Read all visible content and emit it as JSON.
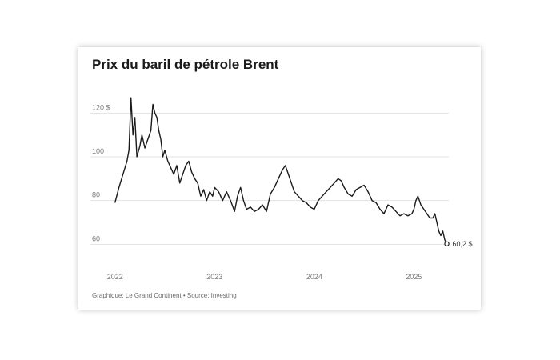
{
  "chart_data": {
    "type": "line",
    "title": "Prix du baril de pétrole Brent",
    "xlabel": "",
    "ylabel": "",
    "y_ticks": [
      "120 $",
      "100",
      "80",
      "60"
    ],
    "y_tick_values": [
      120,
      100,
      80,
      60
    ],
    "x_ticks": [
      "2022",
      "2023",
      "2024",
      "2025"
    ],
    "x_tick_values": [
      2022,
      2023,
      2024,
      2025
    ],
    "xlim": [
      2021.97,
      2025.35
    ],
    "ylim": [
      55,
      130
    ],
    "grid": true,
    "end_label": "60,2 $",
    "line_color": "#1a1a1a",
    "grid_color": "#e3e3e3",
    "series": [
      {
        "x": [
          2022.0,
          2022.04,
          2022.08,
          2022.12,
          2022.14,
          2022.16,
          2022.18,
          2022.2,
          2022.22,
          2022.25,
          2022.27,
          2022.3,
          2022.33,
          2022.36,
          2022.38,
          2022.4,
          2022.42,
          2022.44,
          2022.46,
          2022.48,
          2022.5,
          2022.53,
          2022.56,
          2022.59,
          2022.62,
          2022.65,
          2022.68,
          2022.71,
          2022.74,
          2022.77,
          2022.8,
          2022.83,
          2022.86,
          2022.89,
          2022.92,
          2022.95,
          2022.98,
          2023.0,
          2023.04,
          2023.08,
          2023.12,
          2023.16,
          2023.2,
          2023.23,
          2023.26,
          2023.29,
          2023.32,
          2023.36,
          2023.4,
          2023.44,
          2023.48,
          2023.52,
          2023.56,
          2023.6,
          2023.64,
          2023.68,
          2023.71,
          2023.74,
          2023.77,
          2023.8,
          2023.84,
          2023.88,
          2023.92,
          2023.96,
          2024.0,
          2024.04,
          2024.08,
          2024.12,
          2024.16,
          2024.2,
          2024.24,
          2024.27,
          2024.3,
          2024.34,
          2024.38,
          2024.42,
          2024.46,
          2024.5,
          2024.54,
          2024.58,
          2024.62,
          2024.66,
          2024.7,
          2024.74,
          2024.78,
          2024.82,
          2024.86,
          2024.9,
          2024.94,
          2024.98,
          2025.0,
          2025.02,
          2025.04,
          2025.07,
          2025.1,
          2025.13,
          2025.16,
          2025.19,
          2025.21,
          2025.23,
          2025.25,
          2025.27,
          2025.29,
          2025.31,
          2025.33
        ],
        "values": [
          79,
          86,
          92,
          98,
          103,
          127,
          110,
          118,
          100,
          105,
          110,
          104,
          108,
          112,
          124,
          120,
          118,
          112,
          108,
          100,
          103,
          98,
          95,
          92,
          96,
          88,
          92,
          96,
          98,
          93,
          90,
          88,
          82,
          85,
          80,
          84,
          82,
          86,
          84,
          80,
          84,
          80,
          75,
          82,
          86,
          80,
          76,
          77,
          75,
          76,
          78,
          75,
          83,
          86,
          90,
          94,
          96,
          92,
          88,
          84,
          82,
          80,
          79,
          77,
          76,
          80,
          82,
          84,
          86,
          88,
          90,
          89,
          86,
          83,
          82,
          85,
          86,
          87,
          84,
          80,
          79,
          76,
          74,
          78,
          77,
          75,
          73,
          74,
          73,
          74,
          76,
          80,
          82,
          78,
          76,
          74,
          72,
          72,
          74,
          70,
          66,
          64,
          66,
          62,
          60.2
        ]
      }
    ]
  },
  "footer": {
    "text": "Graphique: Le Grand Continent • Source: Investing"
  }
}
